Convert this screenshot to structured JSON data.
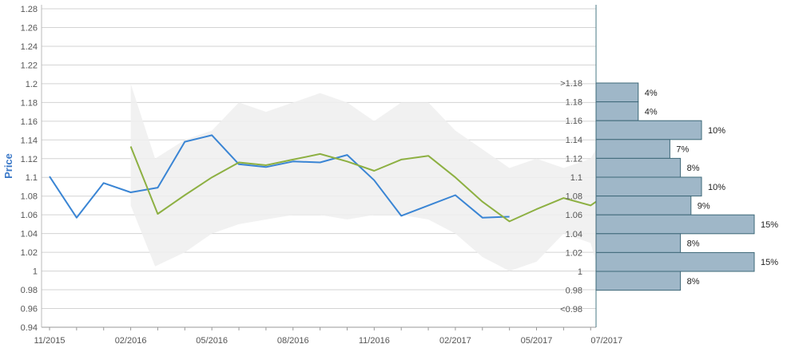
{
  "chart_data": {
    "type": "line",
    "ylabel": "Price",
    "xlabel": "",
    "ylim": [
      0.94,
      1.28
    ],
    "y_ticks": [
      "0.94",
      "0.96",
      "0.98",
      "1",
      "1.02",
      "1.04",
      "1.06",
      "1.08",
      "1.1",
      "1.12",
      "1.14",
      "1.16",
      "1.18",
      "1.2",
      "1.22",
      "1.24",
      "1.26",
      "1.28"
    ],
    "x_tick_labels": [
      "11/2015",
      "02/2016",
      "05/2016",
      "08/2016",
      "11/2016",
      "02/2017",
      "05/2017",
      "07/2017"
    ],
    "x_tick_months": [
      0,
      3,
      6,
      9,
      12,
      15,
      18,
      20
    ],
    "x_range_months": [
      0,
      20.2
    ],
    "grid": "horizontal",
    "band": {
      "x": [
        3,
        3.9,
        5,
        6,
        7,
        8,
        9,
        10,
        11,
        12,
        13,
        14,
        15,
        16,
        17,
        18,
        19,
        20,
        20.2
      ],
      "upper": [
        1.2,
        1.12,
        1.14,
        1.15,
        1.18,
        1.17,
        1.18,
        1.19,
        1.18,
        1.16,
        1.18,
        1.18,
        1.15,
        1.13,
        1.11,
        1.12,
        1.11,
        1.12,
        1.13
      ],
      "lower": [
        1.07,
        1.005,
        1.02,
        1.04,
        1.05,
        1.055,
        1.06,
        1.06,
        1.055,
        1.06,
        1.06,
        1.055,
        1.04,
        1.015,
        1.0,
        1.01,
        1.04,
        1.03,
        1.01
      ]
    },
    "series": [
      {
        "color": "#3a85d4",
        "x": [
          0,
          1,
          2,
          3,
          4,
          5,
          6,
          7,
          8,
          9,
          10,
          11,
          12,
          13,
          14,
          15,
          16,
          17
        ],
        "values": [
          1.101,
          1.057,
          1.094,
          1.084,
          1.089,
          1.138,
          1.145,
          1.114,
          1.111,
          1.117,
          1.116,
          1.124,
          1.097,
          1.059,
          1.07,
          1.081,
          1.057,
          1.058
        ]
      },
      {
        "color": "#8db042",
        "x": [
          3,
          4,
          5,
          6,
          7,
          8,
          9,
          10,
          11,
          12,
          13,
          14,
          15,
          16,
          17,
          18,
          19,
          20,
          20.2
        ],
        "values": [
          1.133,
          1.061,
          1.081,
          1.1,
          1.116,
          1.113,
          1.119,
          1.125,
          1.117,
          1.107,
          1.119,
          1.123,
          1.1,
          1.074,
          1.053,
          1.066,
          1.078,
          1.07,
          1.074
        ]
      }
    ],
    "distribution": {
      "color": "#9fb7c8",
      "bins": [
        {
          "label": ">1.18",
          "pct": 4,
          "pct_label": "4%"
        },
        {
          "label": "1.18",
          "pct": 4,
          "pct_label": "4%"
        },
        {
          "label": "1.16",
          "pct": 10,
          "pct_label": "10%"
        },
        {
          "label": "1.14",
          "pct": 7,
          "pct_label": "7%"
        },
        {
          "label": "1.12",
          "pct": 8,
          "pct_label": "8%"
        },
        {
          "label": "1.1",
          "pct": 10,
          "pct_label": "10%"
        },
        {
          "label": "1.08",
          "pct": 9,
          "pct_label": "9%"
        },
        {
          "label": "1.06",
          "pct": 15,
          "pct_label": "15%"
        },
        {
          "label": "1.04",
          "pct": 8,
          "pct_label": "8%"
        },
        {
          "label": "1.02",
          "pct": 15,
          "pct_label": "15%"
        },
        {
          "label": "1",
          "pct": 8,
          "pct_label": "8%"
        },
        {
          "label": "0.98",
          "pct": 0,
          "pct_label": ""
        },
        {
          "label": "<0.98",
          "pct": 0,
          "pct_label": ""
        }
      ]
    }
  }
}
